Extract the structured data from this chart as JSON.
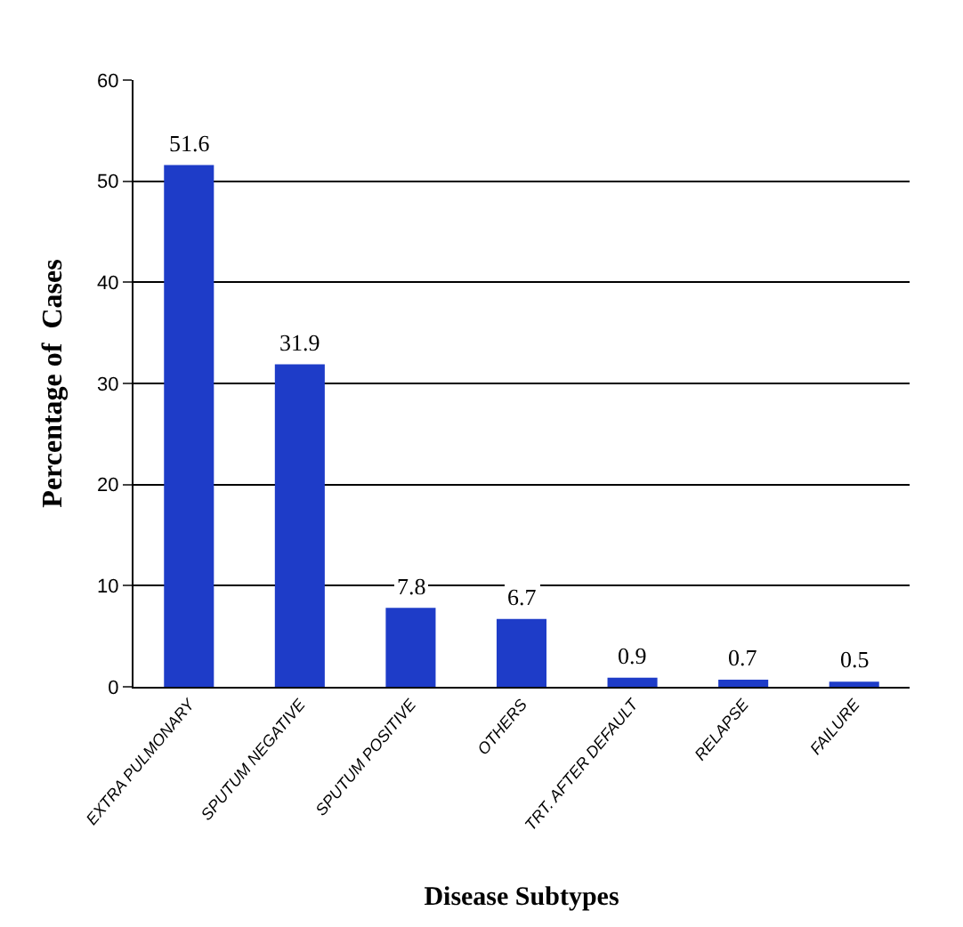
{
  "chart_data": {
    "type": "bar",
    "categories": [
      "EXTRA PULMONARY",
      "SPUTUM NEGATIVE",
      "SPUTUM POSITIVE",
      "OTHERS",
      "TRT. AFTER DEFAULT",
      "RELAPSE",
      "FAILURE"
    ],
    "values": [
      51.6,
      31.9,
      7.8,
      6.7,
      0.9,
      0.7,
      0.5
    ],
    "color": "#1e3cc8",
    "xlabel": "Disease Subtypes",
    "ylabel": "Percentage of  Cases",
    "ylim": [
      0,
      60
    ],
    "yticks": [
      0,
      10,
      20,
      30,
      40,
      50,
      60
    ],
    "grid": "y",
    "data_labels": true,
    "legend": false
  }
}
